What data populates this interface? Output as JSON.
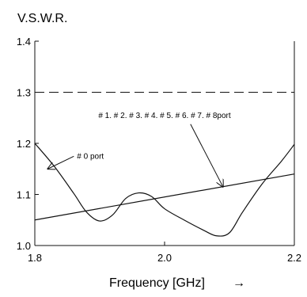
{
  "chart_data": {
    "type": "line",
    "title": "V.S.W.R.",
    "xlabel": "Frequency [GHz]",
    "xlabel_arrow": "→",
    "xlim": [
      1.8,
      2.2
    ],
    "ylim": [
      1.0,
      1.4
    ],
    "x_ticks": [
      "1.8",
      "2.0",
      "2.2"
    ],
    "y_ticks": [
      "1.0",
      "1.1",
      "1.2",
      "1.3",
      "1.4"
    ],
    "grid": false,
    "reference_line": {
      "y": 1.3,
      "style": "dashed"
    },
    "series": [
      {
        "name": "# 0 port",
        "x": [
          1.8,
          1.83,
          1.86,
          1.88,
          1.9,
          1.92,
          1.94,
          1.96,
          1.98,
          2.0,
          2.03,
          2.06,
          2.08,
          2.1,
          2.12,
          2.15,
          2.18,
          2.2
        ],
        "y": [
          1.2,
          1.155,
          1.102,
          1.065,
          1.048,
          1.06,
          1.092,
          1.103,
          1.096,
          1.072,
          1.05,
          1.03,
          1.019,
          1.025,
          1.065,
          1.12,
          1.165,
          1.198
        ]
      },
      {
        "name": "# 1. # 2. # 3. # 4. # 5. # 6. # 7. # 8port",
        "x": [
          1.8,
          2.2
        ],
        "y": [
          1.05,
          1.14
        ]
      }
    ],
    "annotations": [
      {
        "text": "# 0 port",
        "x": 1.865,
        "y": 1.17,
        "arrow_to": [
          1.82,
          1.15
        ]
      },
      {
        "text": "# 1. # 2. # 3. # 4. # 5. # 6. # 7. # 8port",
        "x": 2.0,
        "y": 1.25,
        "arrow_to": [
          2.09,
          1.115
        ]
      }
    ]
  }
}
